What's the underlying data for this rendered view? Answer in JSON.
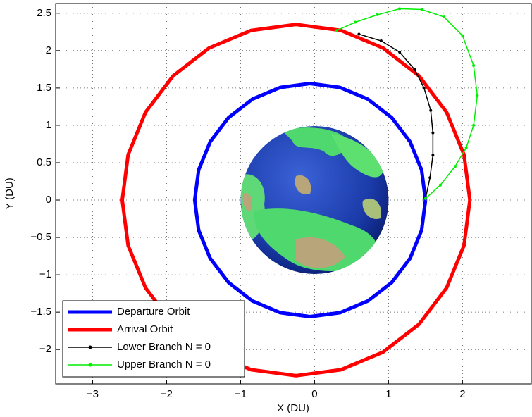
{
  "chart_data": {
    "type": "line",
    "x_label": "X (DU)",
    "y_label": "Y (DU)",
    "xlim": [
      -3.5,
      2.93
    ],
    "ylim": [
      -2.46,
      2.63
    ],
    "xticks": [
      {
        "value": -3,
        "label": "−3"
      },
      {
        "value": -2,
        "label": "−2"
      },
      {
        "value": -1,
        "label": "−1"
      },
      0,
      1,
      2
    ],
    "yticks": [
      {
        "value": -2,
        "label": "−2"
      },
      {
        "value": -1.5,
        "label": "−1.5"
      },
      {
        "value": -1,
        "label": "−1"
      },
      {
        "value": -0.5,
        "label": "−0.5"
      },
      0,
      0.5,
      1,
      1.5,
      2,
      2.5
    ],
    "grid": true,
    "legend": "lower left",
    "series": [
      {
        "name": "Departure Orbit",
        "color": "#0000ff",
        "line_width": 5,
        "marker": "none",
        "x": [
          1.5,
          1.447,
          1.291,
          1.043,
          0.72,
          0.344,
          -0.06,
          -0.464,
          -0.84,
          -1.163,
          -1.411,
          -1.567,
          -1.62,
          -1.567,
          -1.411,
          -1.163,
          -0.84,
          -0.464,
          -0.06,
          0.344,
          0.72,
          1.043,
          1.291,
          1.447,
          1.5
        ],
        "values": [
          0,
          0.404,
          0.78,
          1.103,
          1.351,
          1.507,
          1.56,
          1.507,
          1.351,
          1.103,
          0.78,
          0.404,
          0,
          -0.404,
          -0.78,
          -1.103,
          -1.351,
          -1.507,
          -1.56,
          -1.507,
          -1.351,
          -1.103,
          -0.78,
          -0.404,
          0
        ]
      },
      {
        "name": "Arrival Orbit",
        "color": "#ff0000",
        "line_width": 5,
        "marker": "none",
        "x": [
          2.1,
          2.02,
          1.785,
          1.412,
          0.925,
          0.358,
          -0.25,
          -0.858,
          -1.425,
          -1.912,
          -2.285,
          -2.52,
          -2.6,
          -2.52,
          -2.285,
          -1.912,
          -1.425,
          -0.858,
          -0.25,
          0.358,
          0.925,
          1.412,
          1.785,
          2.02,
          2.1
        ],
        "values": [
          0,
          0.608,
          1.175,
          1.662,
          2.035,
          2.27,
          2.35,
          2.27,
          2.035,
          1.662,
          1.175,
          0.608,
          0,
          -0.608,
          -1.175,
          -1.662,
          -2.035,
          -2.27,
          -2.35,
          -2.27,
          -2.035,
          -1.662,
          -1.175,
          -0.608,
          0
        ]
      },
      {
        "name": "Lower Branch N = 0",
        "color": "#000000",
        "line_width": 1.5,
        "marker": "dot",
        "x": [
          1.5,
          1.56,
          1.6,
          1.6,
          1.57,
          1.48,
          1.35,
          1.15,
          0.9,
          0.6
        ],
        "values": [
          0.02,
          0.3,
          0.6,
          0.9,
          1.2,
          1.5,
          1.75,
          1.98,
          2.13,
          2.22
        ]
      },
      {
        "name": "Upper Branch N = 0",
        "color": "#00ee00",
        "line_width": 1.5,
        "marker": "dot",
        "x": [
          1.5,
          1.7,
          1.9,
          2.05,
          2.15,
          2.2,
          2.15,
          2.0,
          1.75,
          1.45,
          1.15,
          0.85,
          0.55,
          0.3
        ],
        "values": [
          0.02,
          0.2,
          0.45,
          0.7,
          1.0,
          1.4,
          1.8,
          2.2,
          2.45,
          2.55,
          2.56,
          2.48,
          2.38,
          2.27
        ]
      }
    ]
  }
}
